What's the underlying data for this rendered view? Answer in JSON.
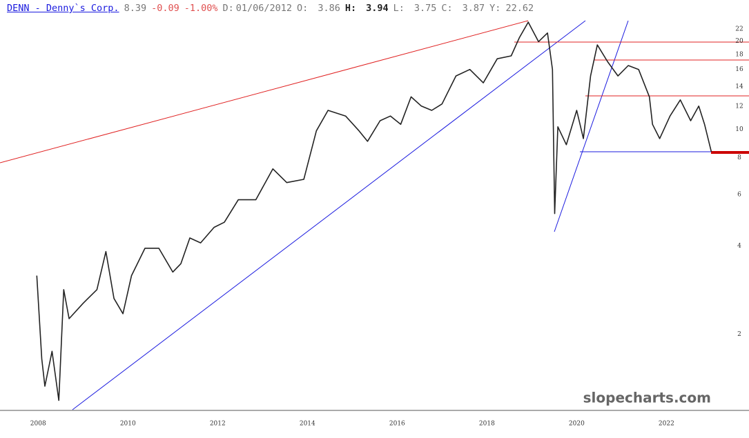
{
  "chart_data": {
    "type": "line",
    "header": {
      "ticker": "DENN - Denny`s Corp.",
      "last": "8.39",
      "change": "-0.09",
      "change_pct": "-1.00%",
      "date_label": "D:",
      "date": "01/06/2012",
      "open_label": "O:",
      "open": "3.86",
      "high_label": "H:",
      "high": "3.94",
      "low_label": "L:",
      "low": "3.75",
      "close_label": "C:",
      "close": "3.87",
      "y_label": "Y:",
      "y_value": "22.62"
    },
    "watermark": "slopecharts.com",
    "x": [
      2007.97,
      2008.08,
      2008.15,
      2008.31,
      2008.46,
      2008.57,
      2008.69,
      2009.0,
      2009.31,
      2009.51,
      2009.69,
      2009.89,
      2010.08,
      2010.38,
      2010.69,
      2011.0,
      2011.18,
      2011.38,
      2011.62,
      2011.92,
      2012.15,
      2012.46,
      2012.85,
      2013.23,
      2013.54,
      2013.92,
      2014.2,
      2014.46,
      2014.85,
      2015.15,
      2015.34,
      2015.62,
      2015.85,
      2016.08,
      2016.31,
      2016.54,
      2016.77,
      2017.0,
      2017.31,
      2017.62,
      2017.92,
      2018.23,
      2018.54,
      2018.72,
      2018.92,
      2019.15,
      2019.35,
      2019.46,
      2019.51,
      2019.58,
      2019.77,
      2020.0,
      2020.15,
      2020.31,
      2020.46,
      2020.69,
      2020.92,
      2021.15,
      2021.38,
      2021.62,
      2021.69,
      2021.85,
      2022.08,
      2022.31,
      2022.54,
      2022.72,
      2022.85,
      2023.0
    ],
    "values": [
      3.17,
      1.65,
      1.33,
      1.75,
      1.19,
      2.84,
      2.26,
      2.55,
      2.84,
      3.83,
      2.65,
      2.35,
      3.17,
      3.93,
      3.93,
      3.26,
      3.48,
      4.26,
      4.1,
      4.63,
      4.82,
      5.75,
      5.75,
      7.33,
      6.58,
      6.75,
      9.88,
      11.6,
      11.1,
      9.88,
      9.1,
      10.7,
      11.1,
      10.4,
      12.9,
      12.0,
      11.6,
      12.2,
      15.2,
      16.0,
      14.4,
      17.4,
      17.8,
      20.5,
      23.2,
      19.9,
      21.3,
      16.0,
      5.16,
      10.2,
      8.86,
      11.6,
      9.3,
      15.2,
      19.4,
      17.0,
      15.2,
      16.5,
      16.0,
      12.9,
      10.4,
      9.3,
      11.1,
      12.6,
      10.7,
      12.0,
      10.4,
      8.39
    ],
    "color": "#222222",
    "log_scale": true,
    "xlim": [
      2007.15,
      2023.84
    ],
    "xticks": [
      2008,
      2010,
      2012,
      2014,
      2016,
      2018,
      2020,
      2022
    ],
    "ylim": [
      1.1,
      27.6
    ],
    "yticks": [
      2,
      4,
      6,
      8,
      10,
      12,
      14,
      16,
      18,
      20,
      22
    ]
  }
}
